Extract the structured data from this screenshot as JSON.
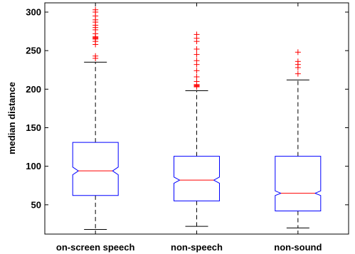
{
  "chart_data": {
    "type": "box",
    "title": "",
    "xlabel": "",
    "ylabel": "median distance",
    "ylim": [
      12,
      312
    ],
    "yticks": [
      50,
      100,
      150,
      200,
      250,
      300
    ],
    "ytick_labels": [
      "50",
      "100",
      "150",
      "200",
      "250",
      "300"
    ],
    "grid": false,
    "categories": [
      "on-screen speech",
      "non-speech",
      "non-sound"
    ],
    "boxes": [
      {
        "category": "on-screen speech",
        "whisker_low": 18,
        "q1": 62,
        "notch_low": 89,
        "median": 94,
        "notch_high": 99,
        "q3": 131,
        "whisker_high": 235,
        "outliers": [
          240,
          243,
          258,
          262,
          265,
          266,
          267,
          268,
          272,
          277,
          280,
          283,
          287,
          290,
          295,
          300,
          303
        ]
      },
      {
        "category": "non-speech",
        "whisker_low": 22,
        "q1": 55,
        "notch_low": 78,
        "median": 82,
        "notch_high": 86,
        "q3": 113,
        "whisker_high": 198,
        "outliers": [
          203,
          204,
          205,
          206,
          210,
          216,
          224,
          232,
          237,
          245,
          252,
          262,
          266,
          271
        ]
      },
      {
        "category": "non-sound",
        "whisker_low": 20,
        "q1": 42,
        "notch_low": 62,
        "median": 65,
        "notch_high": 68,
        "q3": 113,
        "whisker_high": 212,
        "outliers": [
          220,
          228,
          232,
          236,
          248
        ]
      }
    ],
    "colors": {
      "box": "#0000ff",
      "median": "#ff0000",
      "whisker": "#000000",
      "outlier": "#ff0000"
    }
  }
}
